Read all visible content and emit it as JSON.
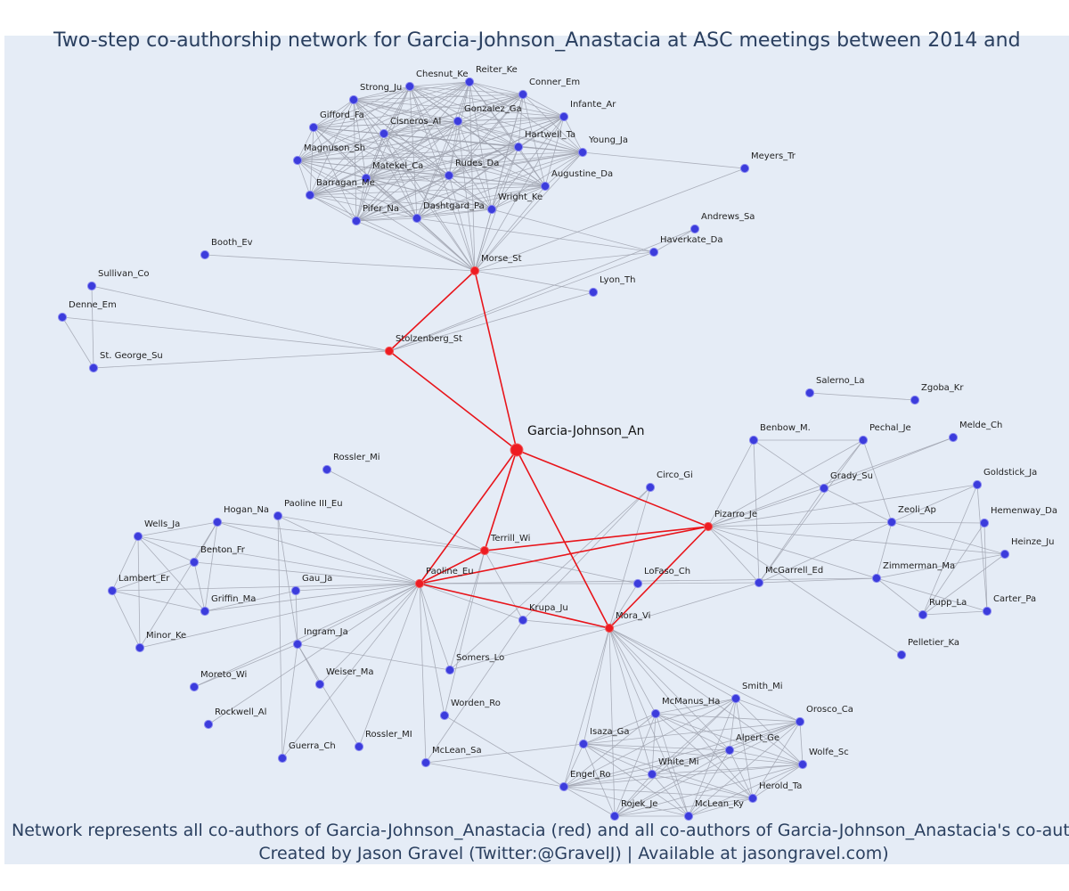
{
  "header": {
    "title": "Two-step co-authorship network for Garcia-Johnson_Anastacia at ASC meetings between 2014 and"
  },
  "nodes": [
    {
      "label": "Chesnut_Ke"
    },
    {
      "label": "Reiter_Ke"
    },
    {
      "label": "Strong_Ju"
    },
    {
      "label": "Conner_Em"
    },
    {
      "label": "Gifford_Fa"
    },
    {
      "label": "Infante_Ar"
    },
    {
      "label": "Cisneros_Al"
    },
    {
      "label": "Gonzalez_Ga"
    },
    {
      "label": "Hartwell_Ta"
    },
    {
      "label": "Young_Ja"
    },
    {
      "label": "Magnuson_Sh"
    },
    {
      "label": "Matekel_Ca"
    },
    {
      "label": "Rudes_Da"
    },
    {
      "label": "Augustine_Da"
    },
    {
      "label": "Barragan_Me"
    },
    {
      "label": "Pifer_Na"
    },
    {
      "label": "Dashtgard_Pa"
    },
    {
      "label": "Wright_Ke"
    },
    {
      "label": "Meyers_Tr"
    },
    {
      "label": "Andrews_Sa"
    },
    {
      "label": "Haverkate_Da"
    },
    {
      "label": "Booth_Ev"
    },
    {
      "label": "Morse_St"
    },
    {
      "label": "Lyon_Th"
    },
    {
      "label": "Sullivan_Co"
    },
    {
      "label": "Denne_Em"
    },
    {
      "label": "St. George_Su"
    },
    {
      "label": "Stolzenberg_St"
    },
    {
      "label": "Garcia-Johnson_An"
    },
    {
      "label": "Rossler_Mi"
    },
    {
      "label": "Circo_Gi"
    },
    {
      "label": "Salerno_La"
    },
    {
      "label": "Zgoba_Kr"
    },
    {
      "label": "Benbow_M."
    },
    {
      "label": "Pechal_Je"
    },
    {
      "label": "Melde_Ch"
    },
    {
      "label": "Grady_Su"
    },
    {
      "label": "Goldstick_Ja"
    },
    {
      "label": "Pizarro_Je"
    },
    {
      "label": "Zeoli_Ap"
    },
    {
      "label": "Hemenway_Da"
    },
    {
      "label": "Heinze_Ju"
    },
    {
      "label": "Terrill_Wi"
    },
    {
      "label": "Paoline III_Eu"
    },
    {
      "label": "Hogan_Na"
    },
    {
      "label": "Wells_Ja"
    },
    {
      "label": "Benton_Fr"
    },
    {
      "label": "Paoline_Eu"
    },
    {
      "label": "LoFaso_Ch"
    },
    {
      "label": "McGarrell_Ed"
    },
    {
      "label": "Zimmerman_Ma"
    },
    {
      "label": "Lambert_Er"
    },
    {
      "label": "Gau_Ja"
    },
    {
      "label": "Griffin_Ma"
    },
    {
      "label": "Rupp_La"
    },
    {
      "label": "Carter_Pa"
    },
    {
      "label": "Krupa_Ju"
    },
    {
      "label": "Mora_Vi"
    },
    {
      "label": "Minor_Ke"
    },
    {
      "label": "Ingram_Ja"
    },
    {
      "label": "Pelletier_Ka"
    },
    {
      "label": "Somers_Lo"
    },
    {
      "label": "Moreto_Wi"
    },
    {
      "label": "Weiser_Ma"
    },
    {
      "label": "Smith_Mi"
    },
    {
      "label": "McManus_Ha"
    },
    {
      "label": "Orosco_Ca"
    },
    {
      "label": "Worden_Ro"
    },
    {
      "label": "Rockwell_Al"
    },
    {
      "label": "Isaza_Ga"
    },
    {
      "label": "Alpert_Ge"
    },
    {
      "label": "Rossler_MI"
    },
    {
      "label": "Guerra_Ch"
    },
    {
      "label": "McLean_Sa"
    },
    {
      "label": "Wolfe_Sc"
    },
    {
      "label": "White_Mi"
    },
    {
      "label": "Engel_Ro"
    },
    {
      "label": "Herold_Ta"
    },
    {
      "label": "Rojek_Je"
    },
    {
      "label": "McLean_Ky"
    }
  ],
  "footer": {
    "line1": "Network represents all co-authors of Garcia-Johnson_Anastacia (red) and all co-authors of Garcia-Johnson_Anastacia's co-author",
    "line2": "Created by Jason Gravel (Twitter:@GravelJ) | Available at jasongravel.com)"
  }
}
